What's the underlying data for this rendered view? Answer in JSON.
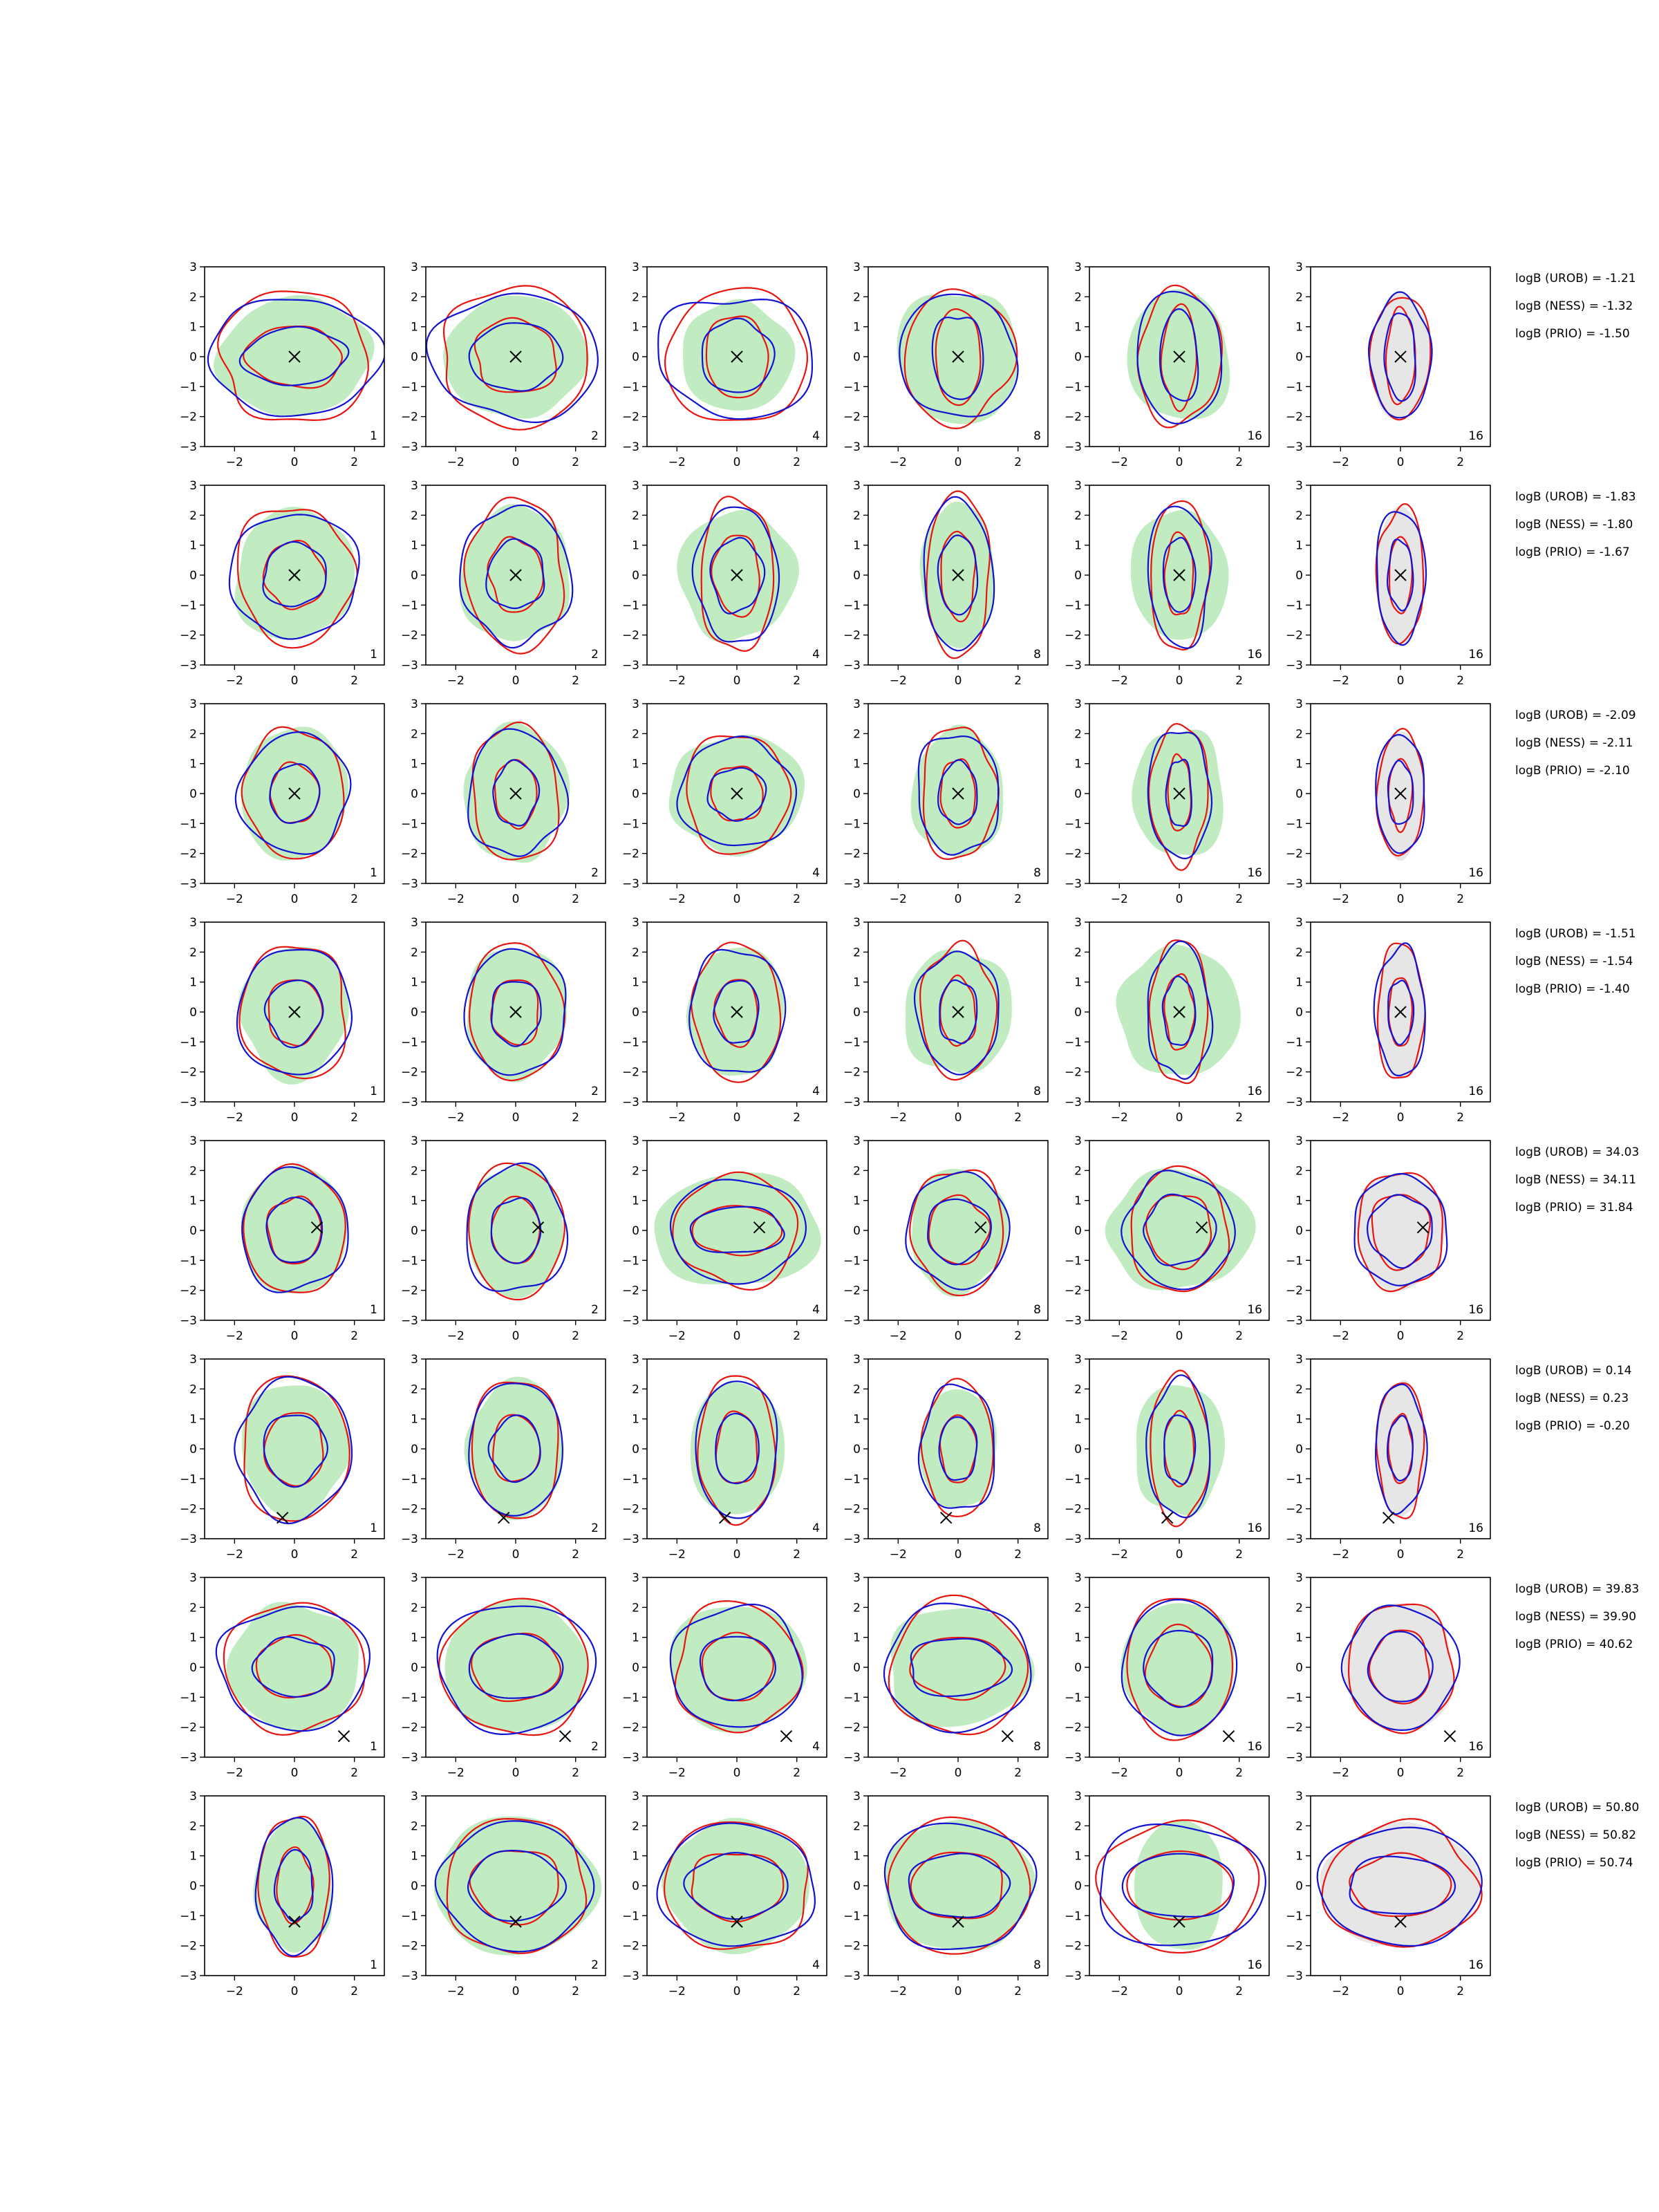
{
  "chart_data": {
    "type": "contour",
    "grid": {
      "rows": 8,
      "cols": 6
    },
    "xlim": [
      -3,
      3
    ],
    "ylim": [
      -3,
      3
    ],
    "xticks": [
      -2,
      0,
      2
    ],
    "yticks": [
      -3,
      -2,
      -1,
      0,
      1,
      2,
      3
    ],
    "xtick_labels": [
      "−2",
      "0",
      "2"
    ],
    "ytick_labels": [
      "−3",
      "−2",
      "−1",
      "0",
      "1",
      "2",
      "3"
    ],
    "column_labels": [
      "1",
      "2",
      "4",
      "8",
      "16",
      "16"
    ],
    "colors": {
      "red": "#e8140f",
      "blue": "#1212d2",
      "green_fill": "#98e09a",
      "gray_fill": "#b8b8b8",
      "marker": "#000000"
    },
    "rows": [
      {
        "true_point": [
          0.0,
          0.0
        ],
        "stats": [
          "logB (UROB) = -1.21",
          "logB (NESS) = -1.32",
          "logB (PRIO) = -1.50"
        ],
        "outer": [
          [
            2.6,
            2.6,
            2.5,
            1.9,
            1.4,
            1.0
          ],
          [
            2.1,
            2.2,
            2.1,
            2.1,
            2.2,
            2.0
          ]
        ],
        "inner": [
          [
            1.6,
            1.4,
            1.1,
            0.8,
            0.6,
            0.5
          ],
          [
            1.0,
            1.2,
            1.3,
            1.5,
            1.6,
            1.5
          ]
        ],
        "green": [
          [
            2.5,
            2.3,
            1.8,
            2.0,
            1.7,
            0.0
          ],
          [
            2.0,
            2.1,
            1.9,
            2.3,
            2.2,
            0.0
          ]
        ],
        "gray_visible": [
          false,
          false,
          false,
          false,
          false,
          true
        ]
      },
      {
        "true_point": [
          0.0,
          0.0
        ],
        "stats": [
          "logB (UROB) = -1.83",
          "logB (NESS) = -1.80",
          "logB (PRIO) = -1.67"
        ],
        "outer": [
          [
            2.0,
            1.7,
            1.3,
            1.1,
            1.0,
            0.8
          ],
          [
            2.2,
            2.4,
            2.4,
            2.6,
            2.4,
            2.2
          ]
        ],
        "inner": [
          [
            1.0,
            0.9,
            0.8,
            0.6,
            0.5,
            0.4
          ],
          [
            1.1,
            1.2,
            1.3,
            1.4,
            1.3,
            1.2
          ]
        ],
        "green": [
          [
            2.0,
            1.8,
            1.9,
            1.2,
            1.6,
            0.0
          ],
          [
            2.2,
            2.3,
            2.2,
            2.5,
            2.2,
            0.0
          ]
        ],
        "gray_visible": [
          false,
          false,
          false,
          false,
          false,
          true
        ]
      },
      {
        "true_point": [
          0.0,
          0.0
        ],
        "stats": [
          "logB (UROB) = -2.09",
          "logB (NESS) = -2.11",
          "logB (PRIO) = -2.10"
        ],
        "outer": [
          [
            1.7,
            1.5,
            1.8,
            1.3,
            1.0,
            0.8
          ],
          [
            2.1,
            2.2,
            1.9,
            2.1,
            2.2,
            2.0
          ]
        ],
        "inner": [
          [
            0.8,
            0.7,
            0.9,
            0.6,
            0.4,
            0.4
          ],
          [
            1.0,
            1.1,
            0.9,
            1.1,
            1.2,
            1.1
          ]
        ],
        "green": [
          [
            1.8,
            1.7,
            2.2,
            1.5,
            1.5,
            0.0
          ],
          [
            2.2,
            2.3,
            2.0,
            2.2,
            2.2,
            0.0
          ]
        ],
        "gray_visible": [
          false,
          false,
          false,
          false,
          false,
          true
        ]
      },
      {
        "true_point": [
          0.0,
          0.0
        ],
        "stats": [
          "logB (UROB) = -1.51",
          "logB (NESS) = -1.54",
          "logB (PRIO) = -1.40"
        ],
        "outer": [
          [
            1.8,
            1.6,
            1.5,
            1.3,
            1.0,
            0.8
          ],
          [
            2.2,
            2.2,
            2.2,
            2.1,
            2.3,
            2.2
          ]
        ],
        "inner": [
          [
            0.9,
            0.8,
            0.7,
            0.6,
            0.5,
            0.4
          ],
          [
            1.1,
            1.1,
            1.1,
            1.1,
            1.2,
            1.1
          ]
        ],
        "green": [
          [
            1.8,
            1.7,
            1.6,
            1.8,
            2.0,
            0.0
          ],
          [
            2.2,
            2.2,
            2.2,
            2.1,
            2.2,
            0.0
          ]
        ],
        "gray_visible": [
          false,
          false,
          false,
          false,
          false,
          true
        ]
      },
      {
        "true_point": [
          0.75,
          0.1
        ],
        "stats": [
          "logB (UROB) = 34.03",
          "logB (NESS) = 34.11",
          "logB (PRIO) = 31.84"
        ],
        "outer": [
          [
            1.7,
            1.6,
            2.1,
            1.6,
            1.7,
            1.5
          ],
          [
            2.1,
            2.2,
            1.8,
            2.0,
            2.0,
            1.9
          ]
        ],
        "inner": [
          [
            0.9,
            0.8,
            1.5,
            1.0,
            1.1,
            1.0
          ],
          [
            1.1,
            1.1,
            0.8,
            1.1,
            1.2,
            1.2
          ]
        ],
        "green": [
          [
            1.8,
            1.6,
            2.8,
            1.6,
            2.4,
            0.0
          ],
          [
            2.1,
            2.2,
            1.9,
            2.1,
            2.0,
            0.0
          ]
        ],
        "gray_visible": [
          false,
          false,
          false,
          false,
          false,
          true
        ]
      },
      {
        "true_point": [
          -0.4,
          -2.3
        ],
        "stats": [
          "logB (UROB) = 0.14",
          "logB (NESS) = 0.23",
          "logB (PRIO) = -0.20"
        ],
        "outer": [
          [
            1.8,
            1.5,
            1.3,
            1.2,
            1.0,
            0.8
          ],
          [
            2.4,
            2.3,
            2.4,
            2.2,
            2.4,
            2.2
          ]
        ],
        "inner": [
          [
            1.0,
            0.8,
            0.7,
            0.6,
            0.5,
            0.4
          ],
          [
            1.2,
            1.1,
            1.2,
            1.1,
            1.2,
            1.1
          ]
        ],
        "green": [
          [
            1.8,
            1.6,
            1.6,
            1.3,
            1.5,
            0.0
          ],
          [
            2.2,
            2.3,
            2.2,
            2.0,
            2.2,
            0.0
          ]
        ],
        "gray_visible": [
          false,
          false,
          false,
          false,
          false,
          true
        ]
      },
      {
        "true_point": [
          1.65,
          -2.3
        ],
        "stats": [
          "logB (UROB) = 39.83",
          "logB (NESS) = 39.90",
          "logB (PRIO) = 40.62"
        ],
        "outer": [
          [
            2.4,
            2.5,
            2.1,
            2.3,
            1.8,
            1.8
          ],
          [
            2.1,
            2.2,
            2.1,
            2.2,
            2.3,
            2.1
          ]
        ],
        "inner": [
          [
            1.3,
            1.5,
            1.2,
            1.6,
            1.1,
            1.0
          ],
          [
            1.0,
            1.1,
            1.1,
            1.0,
            1.3,
            1.2
          ]
        ],
        "green": [
          [
            2.2,
            2.4,
            2.3,
            2.4,
            1.9,
            0.0
          ],
          [
            2.1,
            2.2,
            2.1,
            2.0,
            2.2,
            0.0
          ]
        ],
        "gray_visible": [
          false,
          false,
          false,
          false,
          false,
          true
        ]
      },
      {
        "true_point": [
          0.0,
          -1.2
        ],
        "stats": [
          "logB (UROB) = 50.80",
          "logB (NESS) = 50.82",
          "logB (PRIO) = 50.74"
        ],
        "outer": [
          [
            1.2,
            2.4,
            2.5,
            2.4,
            2.7,
            2.6
          ],
          [
            2.3,
            2.2,
            2.1,
            2.2,
            2.1,
            2.0
          ]
        ],
        "inner": [
          [
            0.6,
            1.5,
            1.6,
            1.6,
            1.8,
            1.7
          ],
          [
            1.2,
            1.2,
            1.1,
            1.1,
            1.1,
            1.0
          ]
        ],
        "green": [
          [
            1.3,
            2.7,
            2.4,
            2.5,
            1.5,
            0.0
          ],
          [
            2.2,
            2.3,
            2.2,
            2.2,
            2.2,
            0.0
          ]
        ],
        "gray_visible": [
          false,
          false,
          false,
          false,
          false,
          true
        ]
      }
    ]
  }
}
